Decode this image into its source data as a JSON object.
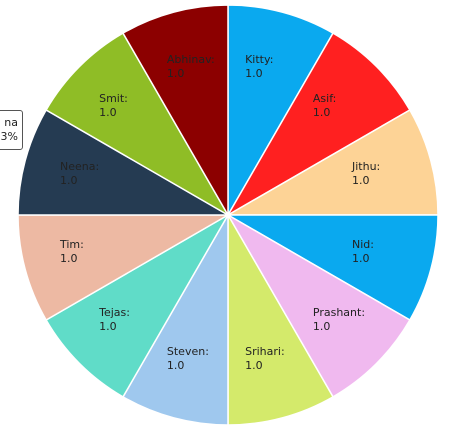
{
  "chart_data": {
    "type": "pie",
    "slices": [
      {
        "label": "Kitty:",
        "value": 1.0,
        "value_text": "1.0",
        "color": "#0aa9ef"
      },
      {
        "label": "Asif:",
        "value": 1.0,
        "value_text": "1.0",
        "color": "#ff2020"
      },
      {
        "label": "Jithu:",
        "value": 1.0,
        "value_text": "1.0",
        "color": "#fdd396"
      },
      {
        "label": "Nid:",
        "value": 1.0,
        "value_text": "1.0",
        "color": "#0aa9ef"
      },
      {
        "label": "Prashant:",
        "value": 1.0,
        "value_text": "1.0",
        "color": "#f0b9ef"
      },
      {
        "label": "Srihari:",
        "value": 1.0,
        "value_text": "1.0",
        "color": "#d4ea6b"
      },
      {
        "label": "Steven:",
        "value": 1.0,
        "value_text": "1.0",
        "color": "#9fc8ee"
      },
      {
        "label": "Tejas:",
        "value": 1.0,
        "value_text": "1.0",
        "color": "#60dcc8"
      },
      {
        "label": "Tim:",
        "value": 1.0,
        "value_text": "1.0",
        "color": "#edb9a3"
      },
      {
        "label": "Neena:",
        "value": 1.0,
        "value_text": "1.0",
        "color": "#253b52"
      },
      {
        "label": "Smit:",
        "value": 1.0,
        "value_text": "1.0",
        "color": "#8fbd26"
      },
      {
        "label": "Abhinav:",
        "value": 1.0,
        "value_text": "1.0",
        "color": "#8c0000"
      }
    ]
  },
  "tooltip": {
    "line1": "na",
    "line2": "3%"
  }
}
